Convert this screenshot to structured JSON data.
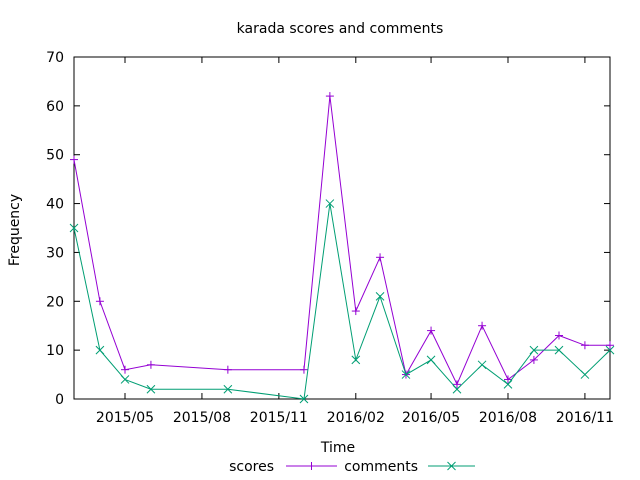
{
  "chart_data": {
    "type": "line",
    "title": "karada scores and comments",
    "xlabel": "Time",
    "ylabel": "Frequency",
    "x_type": "date",
    "xlim": [
      "2015-03-01",
      "2016-12-01"
    ],
    "ylim": [
      0,
      70
    ],
    "yticks": [
      0,
      10,
      20,
      30,
      40,
      50,
      60,
      70
    ],
    "xticks": [
      {
        "value": "2015-05-01",
        "label": "2015/05"
      },
      {
        "value": "2015-08-01",
        "label": "2015/08"
      },
      {
        "value": "2015-11-01",
        "label": "2015/11"
      },
      {
        "value": "2016-02-01",
        "label": "2016/02"
      },
      {
        "value": "2016-05-01",
        "label": "2016/05"
      },
      {
        "value": "2016-08-01",
        "label": "2016/08"
      },
      {
        "value": "2016-11-01",
        "label": "2016/11"
      }
    ],
    "grid": false,
    "legend_position": "bottom-center",
    "x": [
      "2015-03-01",
      "2015-04-01",
      "2015-05-01",
      "2015-06-01",
      "2015-09-01",
      "2015-12-01",
      "2016-01-01",
      "2016-02-01",
      "2016-03-01",
      "2016-04-01",
      "2016-05-01",
      "2016-06-01",
      "2016-07-01",
      "2016-08-01",
      "2016-09-01",
      "2016-10-01",
      "2016-11-01",
      "2016-12-01"
    ],
    "series": [
      {
        "name": "scores",
        "color": "#9400d3",
        "marker": "plus",
        "values": [
          49,
          20,
          6,
          7,
          6,
          6,
          62,
          18,
          29,
          5,
          14,
          3,
          15,
          4,
          8,
          13,
          11,
          11
        ]
      },
      {
        "name": "comments",
        "color": "#009e73",
        "marker": "cross",
        "values": [
          35,
          10,
          4,
          2,
          2,
          0,
          40,
          8,
          21,
          5,
          8,
          2,
          7,
          3,
          10,
          10,
          5,
          10
        ]
      }
    ]
  }
}
